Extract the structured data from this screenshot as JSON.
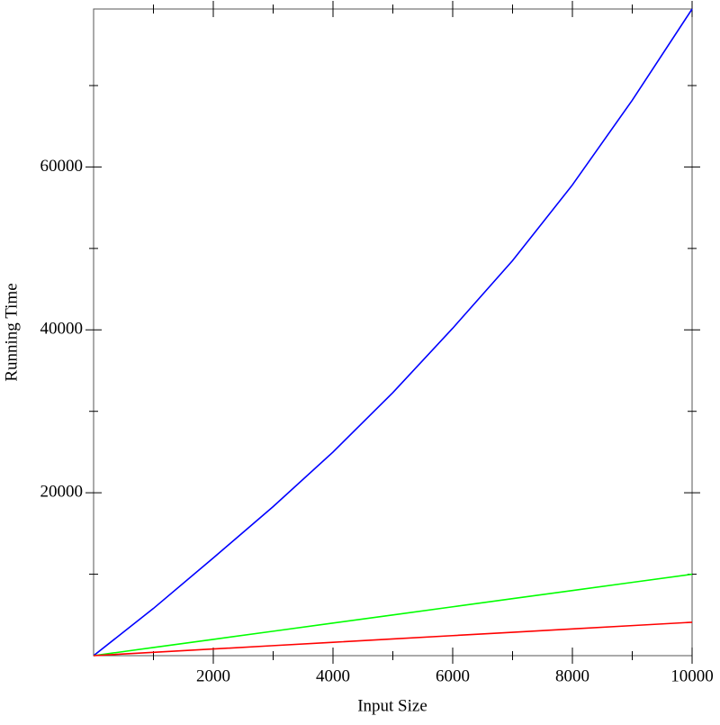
{
  "chart_data": {
    "type": "line",
    "xlabel": "Input Size",
    "ylabel": "Running Time",
    "x": [
      0,
      1000,
      2000,
      3000,
      4000,
      5000,
      6000,
      7000,
      8000,
      9000,
      10000
    ],
    "series": [
      {
        "color": "#0000ff",
        "values": [
          0,
          5800,
          12000,
          18300,
          25000,
          32300,
          40200,
          48500,
          57800,
          68200,
          79400
        ]
      },
      {
        "color": "#00ff00",
        "values": [
          0,
          1000,
          2000,
          3000,
          4000,
          5000,
          6000,
          7000,
          8000,
          9000,
          10000
        ]
      },
      {
        "color": "#ff0000",
        "values": [
          0,
          410,
          820,
          1230,
          1640,
          2050,
          2460,
          2870,
          3280,
          3690,
          4100
        ]
      }
    ],
    "xlim": [
      0,
      10000
    ],
    "ylim": [
      0,
      79400
    ],
    "xticks": [
      2000,
      4000,
      6000,
      8000,
      10000
    ],
    "yticks": [
      20000,
      40000,
      60000
    ],
    "xminor_ticks": [
      1000,
      3000,
      5000,
      7000,
      9000
    ],
    "yminor_ticks": [
      10000,
      30000,
      50000,
      70000
    ]
  }
}
